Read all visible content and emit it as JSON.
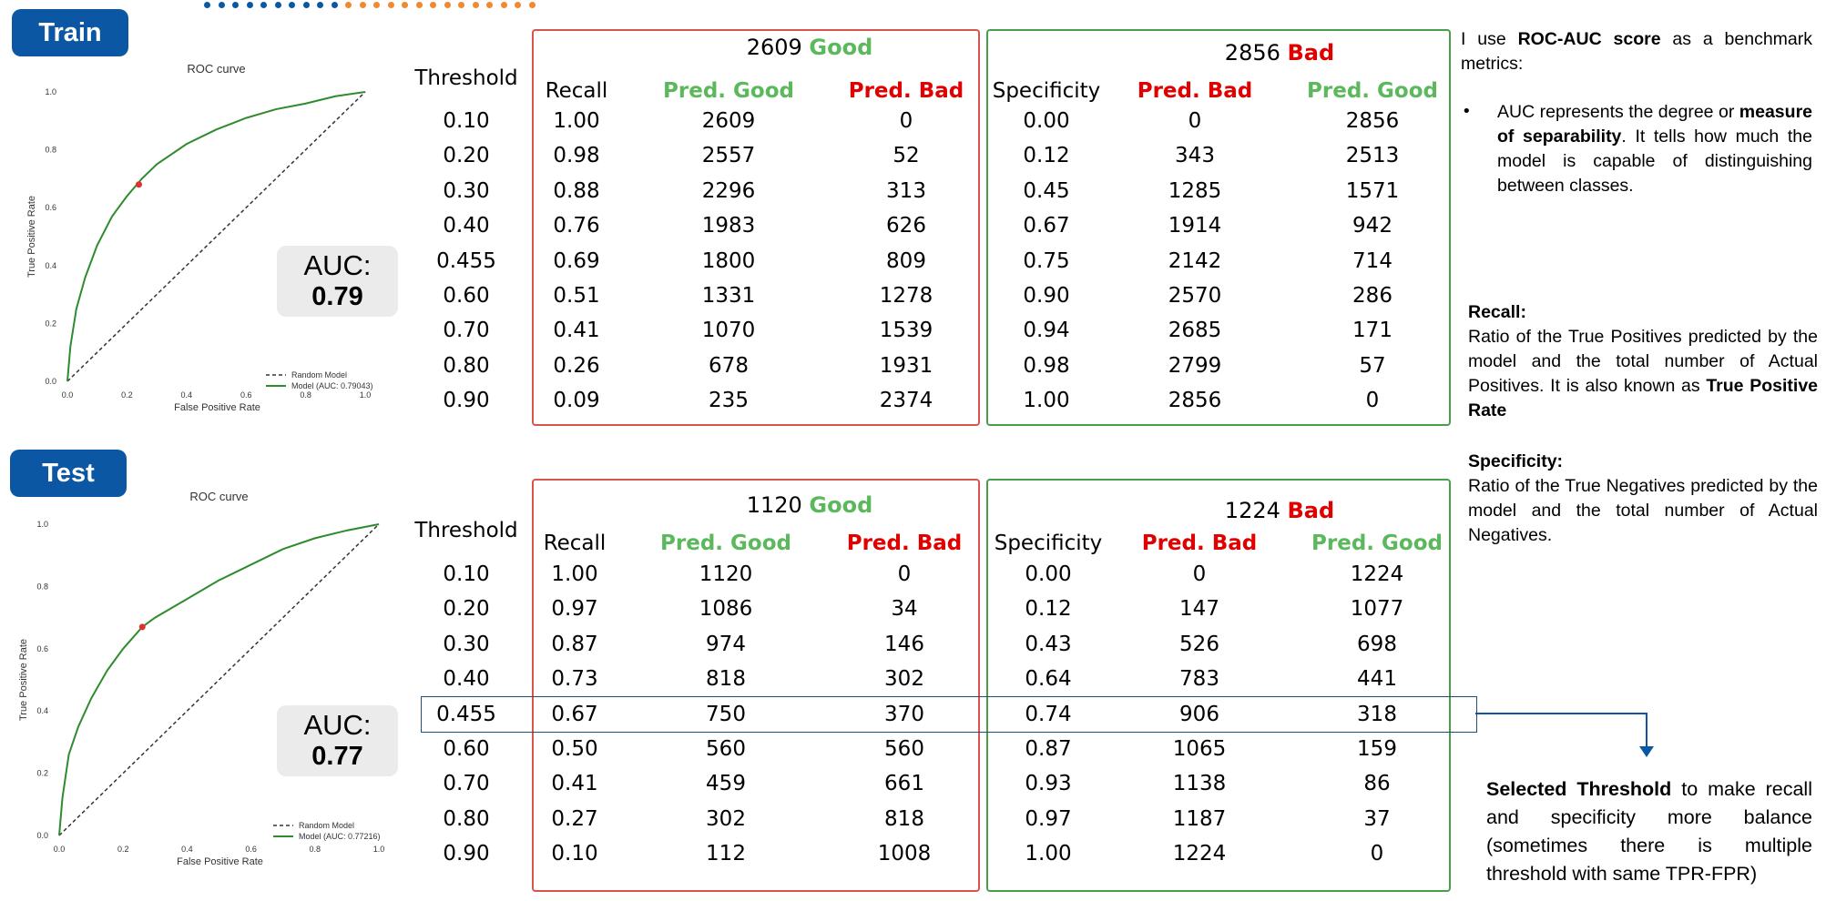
{
  "sections": {
    "train": "Train",
    "test": "Test"
  },
  "colors": {
    "pill": "#0b57a4",
    "good": "#5cb85c",
    "bad": "#e00000",
    "model_line": "#2e8b2e",
    "red_box": "#d9534f",
    "green_box": "#4a9e4a",
    "selection": "#1f4e79",
    "dots_blue": "#0b57a4",
    "dots_orange": "#f08a2c"
  },
  "train_plot": {
    "title": "ROC curve",
    "xlabel": "False Positive Rate",
    "ylabel": "True Positive Rate",
    "legend_random": "Random Model",
    "legend_model": "Model (AUC: 0.79043)",
    "auc_label": "AUC:",
    "auc_value": "0.79"
  },
  "test_plot": {
    "title": "ROC curve",
    "xlabel": "False Positive Rate",
    "ylabel": "True Positive Rate",
    "legend_random": "Random Model",
    "legend_model": "Model (AUC: 0.77216)",
    "auc_label": "AUC:",
    "auc_value": "0.77"
  },
  "chart_data": [
    {
      "type": "line",
      "title": "ROC curve",
      "xlabel": "False Positive Rate",
      "ylabel": "True Positive Rate",
      "xlim": [
        0,
        1
      ],
      "ylim": [
        0,
        1
      ],
      "ticks": [
        "0.0",
        "0.2",
        "0.4",
        "0.6",
        "0.8",
        "1.0"
      ],
      "legend": "bottom-right",
      "series": [
        {
          "name": "Random Model",
          "x": [
            0,
            1
          ],
          "y": [
            0,
            1
          ]
        },
        {
          "name": "Model (AUC: 0.79043)",
          "x": [
            0,
            0.01,
            0.03,
            0.06,
            0.1,
            0.15,
            0.2,
            0.25,
            0.3,
            0.4,
            0.5,
            0.6,
            0.7,
            0.8,
            0.9,
            1.0
          ],
          "y": [
            0,
            0.12,
            0.25,
            0.36,
            0.47,
            0.57,
            0.64,
            0.7,
            0.75,
            0.82,
            0.87,
            0.91,
            0.94,
            0.96,
            0.985,
            1.0
          ]
        }
      ],
      "marker": {
        "x": 0.24,
        "y": 0.68
      }
    },
    {
      "type": "line",
      "title": "ROC curve",
      "xlabel": "False Positive Rate",
      "ylabel": "True Positive Rate",
      "xlim": [
        0,
        1
      ],
      "ylim": [
        0,
        1
      ],
      "ticks": [
        "0.0",
        "0.2",
        "0.4",
        "0.6",
        "0.8",
        "1.0"
      ],
      "legend": "bottom-right",
      "series": [
        {
          "name": "Random Model",
          "x": [
            0,
            1
          ],
          "y": [
            0,
            1
          ]
        },
        {
          "name": "Model (AUC: 0.77216)",
          "x": [
            0,
            0.01,
            0.03,
            0.06,
            0.1,
            0.15,
            0.2,
            0.26,
            0.3,
            0.4,
            0.5,
            0.6,
            0.7,
            0.8,
            0.9,
            1.0
          ],
          "y": [
            0,
            0.12,
            0.26,
            0.35,
            0.44,
            0.53,
            0.6,
            0.67,
            0.7,
            0.76,
            0.82,
            0.87,
            0.92,
            0.955,
            0.98,
            1.0
          ]
        }
      ],
      "marker": {
        "x": 0.26,
        "y": 0.67
      }
    },
    {
      "type": "table",
      "name": "train",
      "columns": [
        "Threshold",
        "Recall",
        "Pred. Good",
        "Pred. Bad",
        "Specificity",
        "Pred. Bad",
        "Pred. Good"
      ],
      "good_total": "2609",
      "bad_total": "2856",
      "rows": [
        [
          "0.10",
          "1.00",
          "2609",
          "0",
          "0.00",
          "0",
          "2856"
        ],
        [
          "0.20",
          "0.98",
          "2557",
          "52",
          "0.12",
          "343",
          "2513"
        ],
        [
          "0.30",
          "0.88",
          "2296",
          "313",
          "0.45",
          "1285",
          "1571"
        ],
        [
          "0.40",
          "0.76",
          "1983",
          "626",
          "0.67",
          "1914",
          "942"
        ],
        [
          "0.455",
          "0.69",
          "1800",
          "809",
          "0.75",
          "2142",
          "714"
        ],
        [
          "0.60",
          "0.51",
          "1331",
          "1278",
          "0.90",
          "2570",
          "286"
        ],
        [
          "0.70",
          "0.41",
          "1070",
          "1539",
          "0.94",
          "2685",
          "171"
        ],
        [
          "0.80",
          "0.26",
          "678",
          "1931",
          "0.98",
          "2799",
          "57"
        ],
        [
          "0.90",
          "0.09",
          "235",
          "2374",
          "1.00",
          "2856",
          "0"
        ]
      ]
    },
    {
      "type": "table",
      "name": "test",
      "columns": [
        "Threshold",
        "Recall",
        "Pred. Good",
        "Pred. Bad",
        "Specificity",
        "Pred. Bad",
        "Pred. Good"
      ],
      "good_total": "1120",
      "bad_total": "1224",
      "rows": [
        [
          "0.10",
          "1.00",
          "1120",
          "0",
          "0.00",
          "0",
          "1224"
        ],
        [
          "0.20",
          "0.97",
          "1086",
          "34",
          "0.12",
          "147",
          "1077"
        ],
        [
          "0.30",
          "0.87",
          "974",
          "146",
          "0.43",
          "526",
          "698"
        ],
        [
          "0.40",
          "0.73",
          "818",
          "302",
          "0.64",
          "783",
          "441"
        ],
        [
          "0.455",
          "0.67",
          "750",
          "370",
          "0.74",
          "906",
          "318"
        ],
        [
          "0.60",
          "0.50",
          "560",
          "560",
          "0.87",
          "1065",
          "159"
        ],
        [
          "0.70",
          "0.41",
          "459",
          "661",
          "0.93",
          "1138",
          "86"
        ],
        [
          "0.80",
          "0.27",
          "302",
          "818",
          "0.97",
          "1187",
          "37"
        ],
        [
          "0.90",
          "0.10",
          "112",
          "1008",
          "1.00",
          "1224",
          "0"
        ]
      ]
    }
  ],
  "headers": {
    "threshold": "Threshold",
    "recall": "Recall",
    "pred_good": "Pred. Good",
    "pred_bad": "Pred. Bad",
    "specificity": "Specificity",
    "good_word": "Good",
    "bad_word": "Bad"
  },
  "notes": {
    "intro_pre": "I use",
    "intro_bold": "ROC-AUC score",
    "intro_post": "as a benchmark metrics:",
    "bullet_pre": "AUC represents the degree or",
    "bullet_bold": "measure of separability",
    "bullet_post": ". It tells how much the model is capable of distinguishing between classes.",
    "recall_title": "Recall:",
    "recall_text": "Ratio of the True Positives predicted by the model and the total number of Actual Positives. It is also known as",
    "recall_bold": "True Positive Rate",
    "spec_title": "Specificity:",
    "spec_text": "Ratio of the True Negatives predicted by the model and the total number of Actual Negatives.",
    "sel_bold": "Selected Threshold",
    "sel_text": "to make recall and specificity more balance (sometimes there is multiple threshold with same TPR-FPR)"
  }
}
